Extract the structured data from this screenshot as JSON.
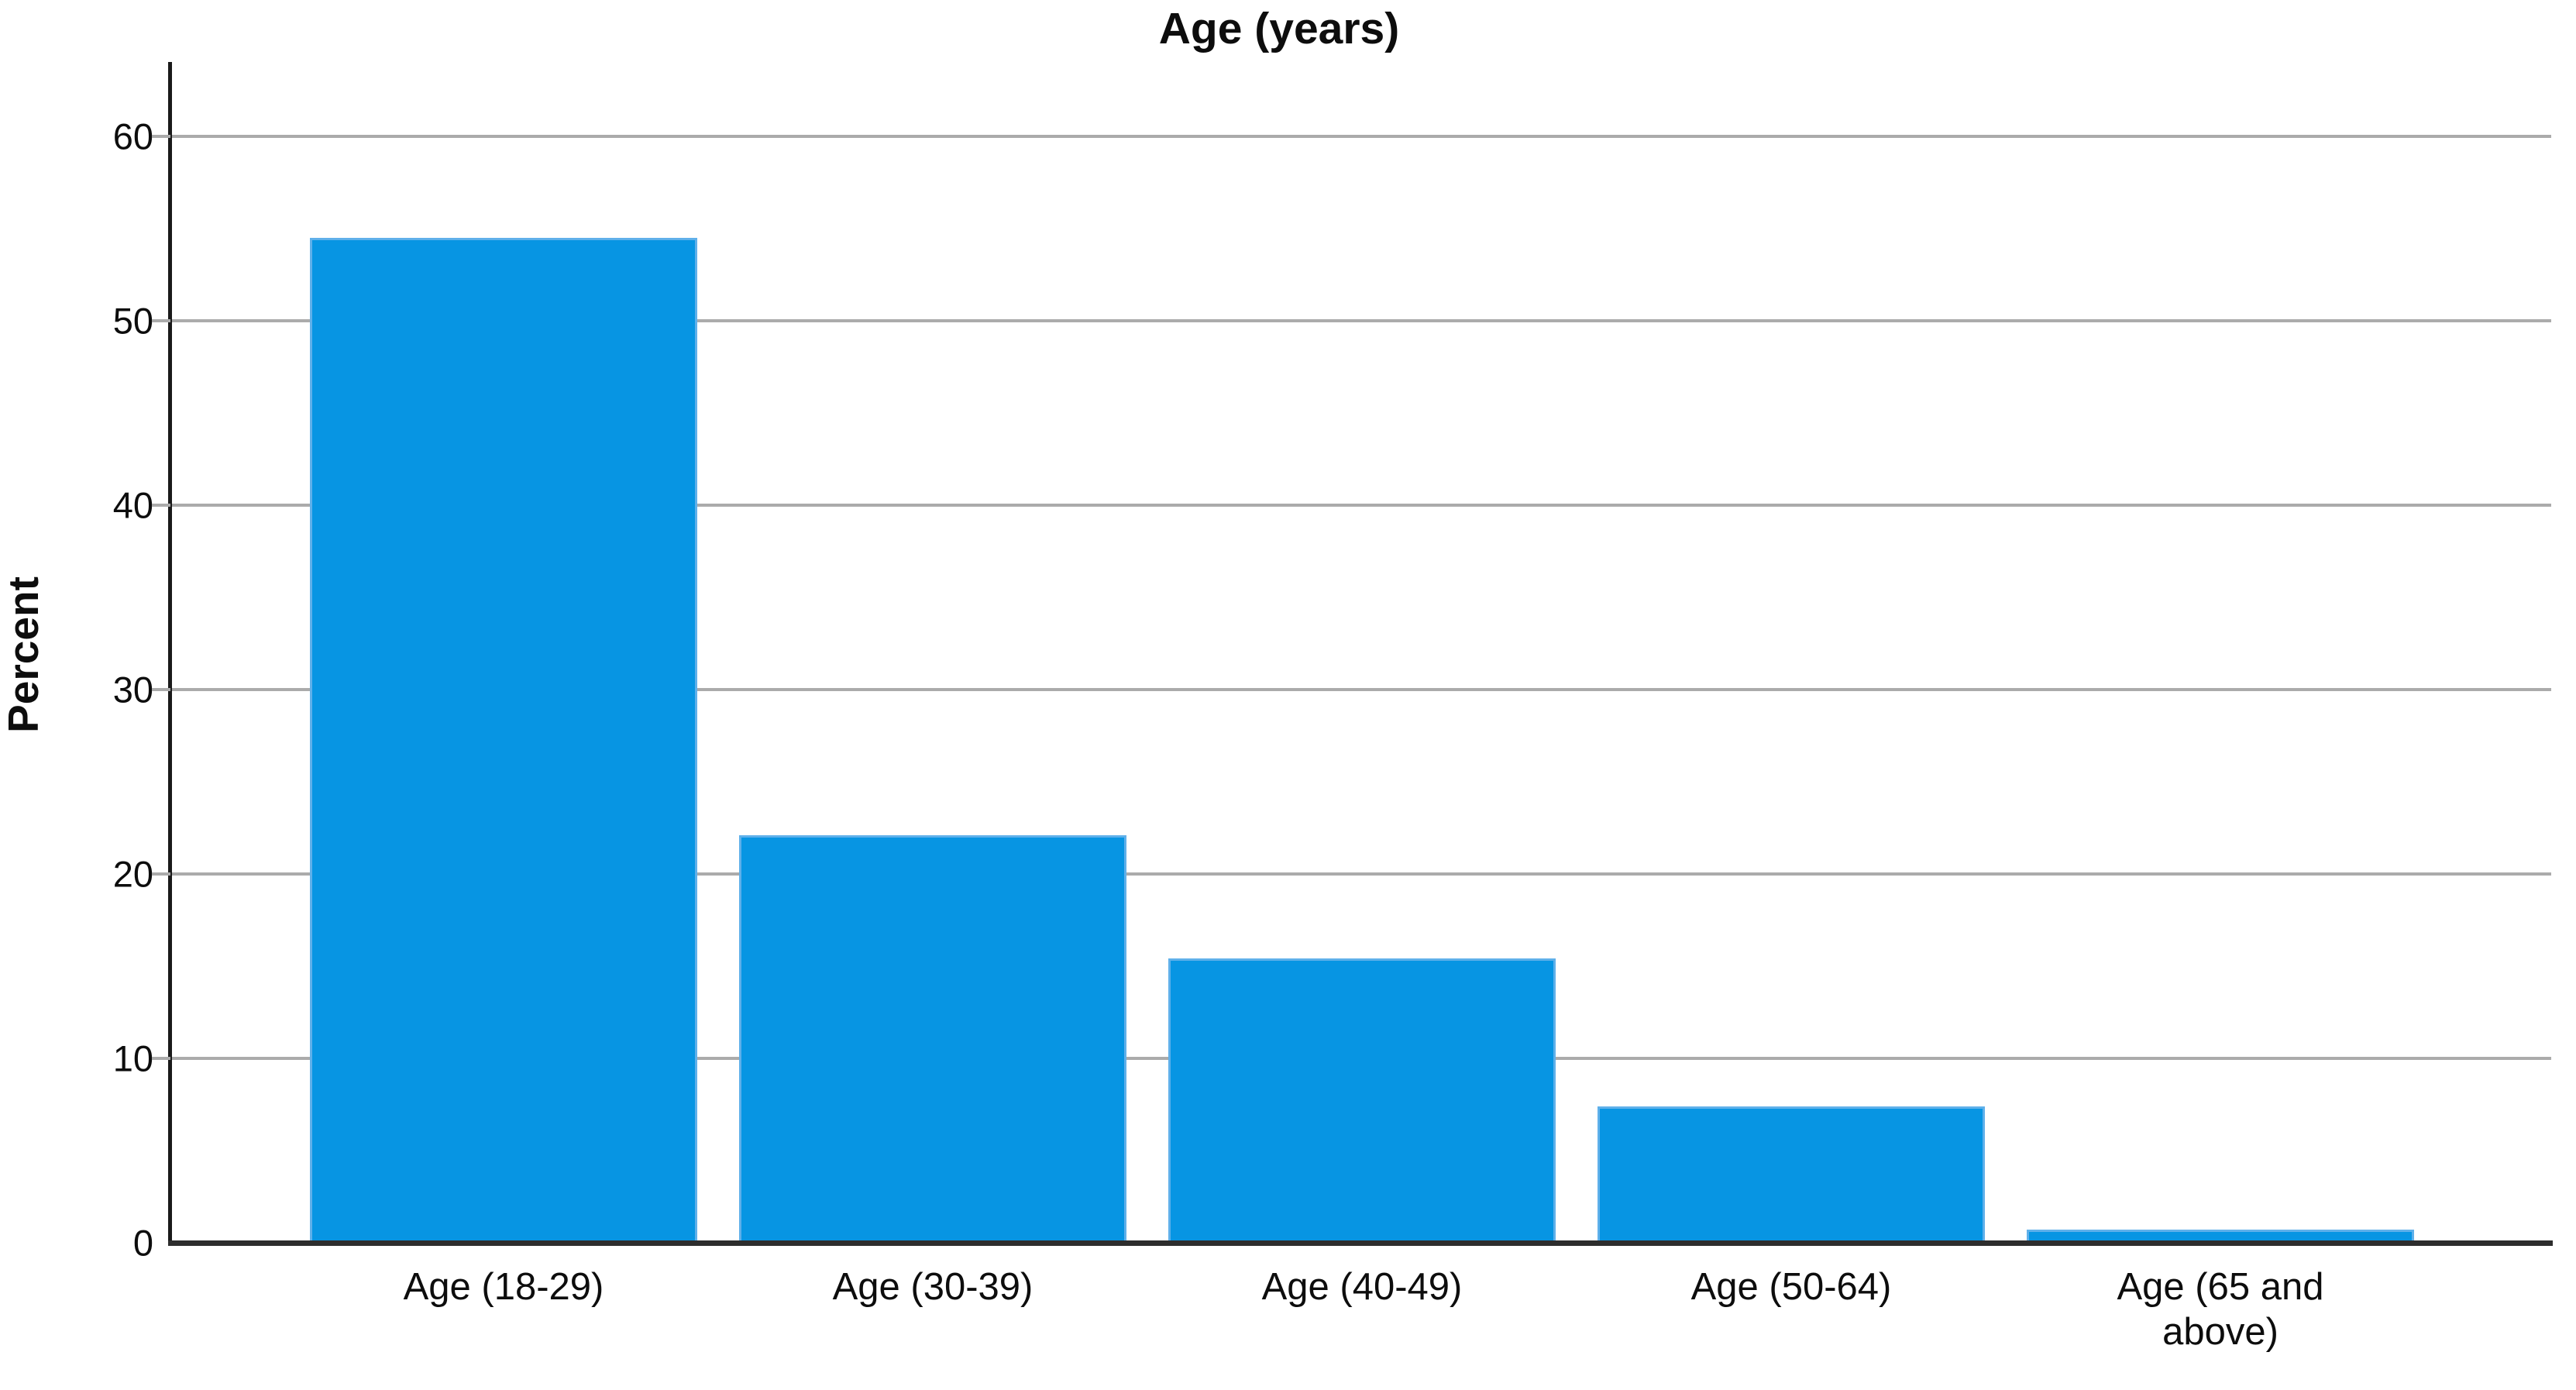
{
  "chart_data": {
    "type": "bar",
    "title": "Age (years)",
    "xlabel": "",
    "ylabel": "Percent",
    "categories": [
      "Age (18-29)",
      "Age (30-39)",
      "Age (40-49)",
      "Age (50-64)",
      "Age (65 and above)"
    ],
    "category_display_labels": [
      "Age (18-29)",
      "Age (30-39)",
      "Age (40-49)",
      "Age (50-64)",
      "Age (65 and\nabove)"
    ],
    "values": [
      54.5,
      22.1,
      15.4,
      7.4,
      0.7
    ],
    "y_tick_labels": [
      "60",
      "50",
      "40",
      "30",
      "20",
      "10",
      "0"
    ],
    "y_tick_values": [
      60,
      50,
      40,
      30,
      20,
      10,
      0
    ],
    "ylim": [
      0,
      64
    ],
    "grid": "horizontal-only",
    "legend": "none",
    "colors": {
      "bar_fill": "#0795e3",
      "bar_edge": "#5fb0ea",
      "gridline": "#ababab",
      "y_axis": "#1a1a1a",
      "x_axis": "#2d2d2d",
      "text": "#0d0d0d",
      "background": "#ffffff"
    }
  }
}
